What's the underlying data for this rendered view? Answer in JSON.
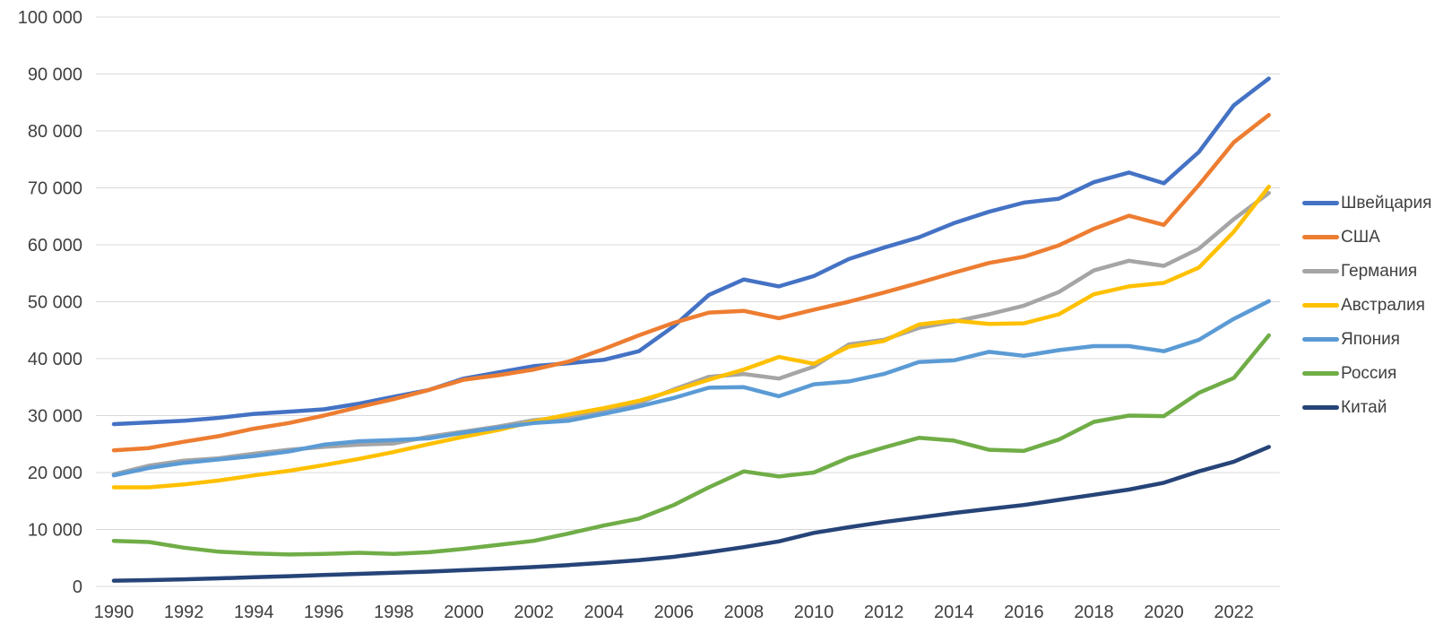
{
  "chart_data": {
    "type": "line",
    "title": "",
    "xlabel": "",
    "ylabel": "",
    "grid": true,
    "legend_position": "right",
    "ylim": [
      0,
      100000
    ],
    "years": [
      1990,
      1991,
      1992,
      1993,
      1994,
      1995,
      1996,
      1997,
      1998,
      1999,
      2000,
      2001,
      2002,
      2003,
      2004,
      2005,
      2006,
      2007,
      2008,
      2009,
      2010,
      2011,
      2012,
      2013,
      2014,
      2015,
      2016,
      2017,
      2018,
      2019,
      2020,
      2021,
      2022,
      2023
    ],
    "x_tick_labels": [
      "1990",
      "1992",
      "1994",
      "1996",
      "1998",
      "2000",
      "2002",
      "2004",
      "2006",
      "2008",
      "2010",
      "2012",
      "2014",
      "2016",
      "2018",
      "2020",
      "2022"
    ],
    "y_ticks": [
      0,
      10000,
      20000,
      30000,
      40000,
      50000,
      60000,
      70000,
      80000,
      90000,
      100000
    ],
    "y_tick_labels": [
      "0",
      "10 000",
      "20 000",
      "30 000",
      "40 000",
      "50 000",
      "60 000",
      "70 000",
      "80 000",
      "90 000",
      "100 000"
    ],
    "series": [
      {
        "name": "Швейцария",
        "color": "#4472C4",
        "values": [
          28500,
          28800,
          29100,
          29600,
          30300,
          30700,
          31100,
          32100,
          33300,
          34500,
          36500,
          37600,
          38700,
          39200,
          39800,
          41300,
          45700,
          51200,
          53900,
          52700,
          54500,
          57500,
          59500,
          61300,
          63800,
          65800,
          67400,
          68100,
          71000,
          72700,
          70800,
          76300,
          84500,
          89200
        ]
      },
      {
        "name": "США",
        "color": "#ED7D31",
        "values": [
          23900,
          24300,
          25400,
          26400,
          27700,
          28700,
          30000,
          31500,
          32900,
          34500,
          36300,
          37100,
          38100,
          39500,
          41700,
          44100,
          46300,
          48100,
          48400,
          47100,
          48600,
          50000,
          51600,
          53300,
          55100,
          56800,
          57900,
          59900,
          62800,
          65100,
          63500,
          70500,
          78000,
          82800
        ]
      },
      {
        "name": "Германия",
        "color": "#A5A5A5",
        "values": [
          19700,
          21200,
          22100,
          22500,
          23300,
          24000,
          24500,
          24900,
          25100,
          26300,
          27200,
          28100,
          29200,
          29800,
          30900,
          32200,
          34600,
          36800,
          37300,
          36500,
          38600,
          42500,
          43300,
          45400,
          46500,
          47800,
          49300,
          51700,
          55500,
          57200,
          56300,
          59300,
          64500,
          69100
        ]
      },
      {
        "name": "Австралия",
        "color": "#FFC000",
        "values": [
          17400,
          17400,
          17900,
          18600,
          19500,
          20300,
          21300,
          22400,
          23600,
          25000,
          26300,
          27500,
          29000,
          30200,
          31300,
          32600,
          34400,
          36300,
          38100,
          40300,
          39100,
          42100,
          43100,
          46000,
          46700,
          46100,
          46200,
          47800,
          51300,
          52700,
          53300,
          56000,
          62300,
          70200
        ]
      },
      {
        "name": "Япония",
        "color": "#5B9BD5",
        "values": [
          19500,
          20800,
          21700,
          22300,
          22900,
          23700,
          24900,
          25500,
          25700,
          26000,
          27000,
          27900,
          28700,
          29100,
          30300,
          31600,
          33100,
          34900,
          35000,
          33400,
          35500,
          36000,
          37300,
          39400,
          39700,
          41200,
          40500,
          41500,
          42200,
          42200,
          41300,
          43300,
          47000,
          50100
        ]
      },
      {
        "name": "Россия",
        "color": "#70AD47",
        "values": [
          8000,
          7800,
          6800,
          6100,
          5800,
          5600,
          5700,
          5900,
          5700,
          6000,
          6600,
          7300,
          8000,
          9300,
          10700,
          11900,
          14300,
          17400,
          20200,
          19300,
          20000,
          22600,
          24400,
          26100,
          25600,
          24000,
          23800,
          25800,
          28900,
          30000,
          29900,
          34000,
          36600,
          44100
        ]
      },
      {
        "name": "Китай",
        "color": "#264478",
        "values": [
          1000,
          1100,
          1250,
          1420,
          1600,
          1800,
          2000,
          2200,
          2400,
          2600,
          2850,
          3100,
          3400,
          3750,
          4150,
          4600,
          5200,
          6000,
          6900,
          7900,
          9400,
          10400,
          11300,
          12100,
          12900,
          13600,
          14300,
          15200,
          16100,
          17000,
          18200,
          20200,
          21900,
          24500
        ]
      }
    ]
  },
  "style": {
    "grid_color": "#D9D9D9",
    "axis_text_color": "#404040",
    "background": "#FFFFFF",
    "line_width": 4.5
  },
  "layout_text": {}
}
